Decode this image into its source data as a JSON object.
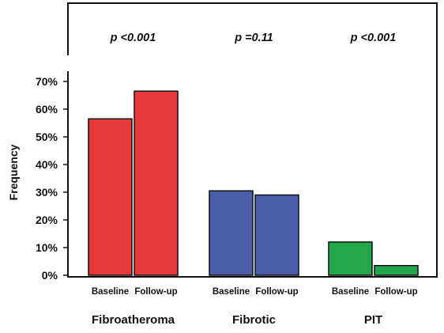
{
  "chart_data": {
    "type": "bar",
    "ylabel": "Frequency",
    "ylim": [
      0,
      0.72
    ],
    "yticks": [
      "0%",
      "10%",
      "20%",
      "30%",
      "40%",
      "50%",
      "60%",
      "70%"
    ],
    "groups": [
      {
        "name": "Fibroatheroma",
        "p_value": "p <0.001",
        "color": "#e8393a",
        "bars": [
          {
            "label": "Baseline",
            "value": 0.565
          },
          {
            "label": "Follow-up",
            "value": 0.665
          }
        ]
      },
      {
        "name": "Fibrotic",
        "p_value": "p =0.11",
        "color": "#4b5ea9",
        "bars": [
          {
            "label": "Baseline",
            "value": 0.305
          },
          {
            "label": "Follow-up",
            "value": 0.29
          }
        ]
      },
      {
        "name": "PIT",
        "p_value": "p <0.001",
        "color": "#22a84a",
        "bars": [
          {
            "label": "Baseline",
            "value": 0.12
          },
          {
            "label": "Follow-up",
            "value": 0.035
          }
        ]
      }
    ]
  }
}
